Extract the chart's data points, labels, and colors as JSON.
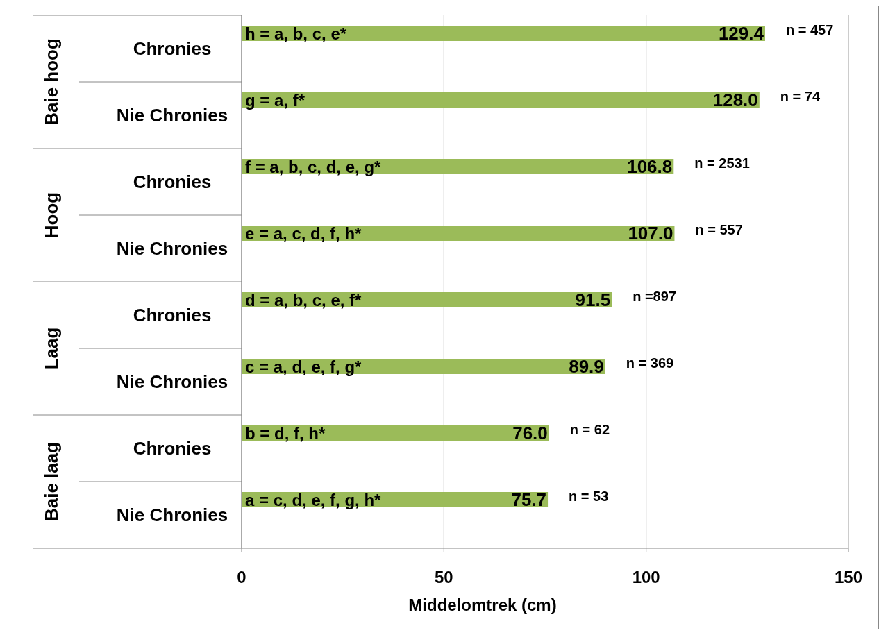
{
  "chart_data": {
    "type": "bar",
    "orientation": "horizontal",
    "xlabel": "Middelomtrek (cm)",
    "categories": [
      "Chronies",
      "Nie Chronies",
      "Chronies",
      "Nie Chronies",
      "Chronies",
      "Nie Chronies",
      "Chronies",
      "Nie Chronies"
    ],
    "values": [
      129.4,
      128.0,
      106.8,
      107.0,
      91.5,
      89.9,
      76.0,
      75.7
    ],
    "value_labels": [
      "129.4",
      "128.0",
      "106.8",
      "107.0",
      "91.5",
      "89.9",
      "76.0",
      "75.7"
    ],
    "color": "#9bbb59",
    "xlim": [
      0,
      150
    ],
    "xticks": [
      0,
      50,
      100,
      150
    ],
    "grid": "x",
    "annotations": [
      "Baie hoog",
      "Hoog",
      "Laag",
      "Baie laag",
      "h = a, b, c, e*",
      "g = a, f*",
      "f = a, b, c, d, e, g*",
      "e = a, c, d, f, h*",
      "d = a, b, c, e, f*",
      "c = a, d, e, f, g*",
      "b = d, f, h*",
      "a = c, d, e, f, g, h*",
      "n = 457",
      "n = 74",
      "n = 2531",
      "n = 557",
      "n =897",
      "n = 369",
      "n = 62",
      "n = 53"
    ]
  }
}
